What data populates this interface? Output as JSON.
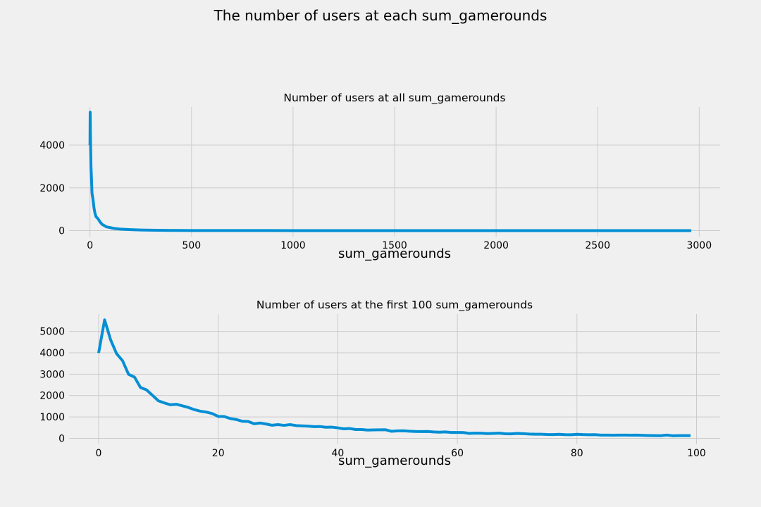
{
  "figure": {
    "suptitle": "The number of users at each sum_gamerounds"
  },
  "colors": {
    "background": "#f0f0f0",
    "line": "#008fd5",
    "grid": "#cbcbcb"
  },
  "chart_data": [
    {
      "type": "line",
      "title": "Number of users at all sum_gamerounds",
      "xlabel": "sum_gamerounds",
      "ylabel": "",
      "xlim": [
        -103,
        3103
      ],
      "ylim": [
        -280,
        5780
      ],
      "xticks": [
        0,
        500,
        1000,
        1500,
        2000,
        2500,
        3000
      ],
      "yticks": [
        0,
        2000,
        4000
      ],
      "grid": true,
      "series": [
        {
          "x": [
            0,
            1,
            2,
            3,
            5,
            8,
            10,
            15,
            20,
            25,
            30,
            40,
            50,
            60,
            70,
            80,
            100,
            120,
            150,
            200,
            250,
            300,
            400,
            500,
            700,
            1000,
            1500,
            2000,
            2500,
            2961
          ],
          "y": [
            3994,
            5538,
            4606,
            3958,
            3000,
            2300,
            1750,
            1450,
            1050,
            800,
            650,
            550,
            400,
            290,
            240,
            180,
            140,
            100,
            70,
            45,
            30,
            20,
            10,
            5,
            3,
            2,
            1,
            1,
            1,
            1
          ]
        }
      ]
    },
    {
      "type": "line",
      "title": "Number of users at the first 100 sum_gamerounds",
      "xlabel": "sum_gamerounds",
      "ylabel": "",
      "xlim": [
        -4.95,
        103.95
      ],
      "ylim": [
        -280,
        5810
      ],
      "xticks": [
        0,
        20,
        40,
        60,
        80,
        100
      ],
      "yticks": [
        0,
        1000,
        2000,
        3000,
        4000,
        5000
      ],
      "grid": true,
      "series": [
        {
          "x": [
            0,
            1,
            2,
            3,
            4,
            5,
            6,
            7,
            8,
            9,
            10,
            11,
            12,
            13,
            14,
            15,
            16,
            17,
            18,
            19,
            20,
            21,
            22,
            23,
            24,
            25,
            26,
            27,
            28,
            29,
            30,
            31,
            32,
            33,
            34,
            35,
            36,
            37,
            38,
            39,
            40,
            41,
            42,
            43,
            44,
            45,
            46,
            47,
            48,
            49,
            50,
            51,
            52,
            53,
            54,
            55,
            56,
            57,
            58,
            59,
            60,
            61,
            62,
            63,
            64,
            65,
            66,
            67,
            68,
            69,
            70,
            71,
            72,
            73,
            74,
            75,
            76,
            77,
            78,
            79,
            80,
            81,
            82,
            83,
            84,
            85,
            86,
            87,
            88,
            89,
            90,
            91,
            92,
            93,
            94,
            95,
            96,
            97,
            98,
            99
          ],
          "y": [
            3994,
            5538,
            4606,
            3958,
            3629,
            2992,
            2861,
            2379,
            2267,
            2013,
            1752,
            1654,
            1570,
            1594,
            1519,
            1446,
            1342,
            1269,
            1228,
            1158,
            1024,
            1021,
            925,
            881,
            799,
            790,
            684,
            717,
            670,
            612,
            642,
            607,
            641,
            598,
            585,
            571,
            549,
            553,
            518,
            525,
            492,
            444,
            459,
            411,
            410,
            388,
            393,
            397,
            402,
            328,
            348,
            353,
            334,
            321,
            318,
            322,
            299,
            287,
            300,
            275,
            275,
            270,
            230,
            242,
            240,
            222,
            229,
            242,
            215,
            211,
            230,
            219,
            203,
            194,
            193,
            181,
            178,
            190,
            174,
            170,
            190,
            175,
            167,
            173,
            153,
            151,
            147,
            151,
            153,
            146,
            152,
            141,
            131,
            126,
            124,
            154,
            121,
            127,
            128,
            129
          ]
        }
      ]
    }
  ]
}
